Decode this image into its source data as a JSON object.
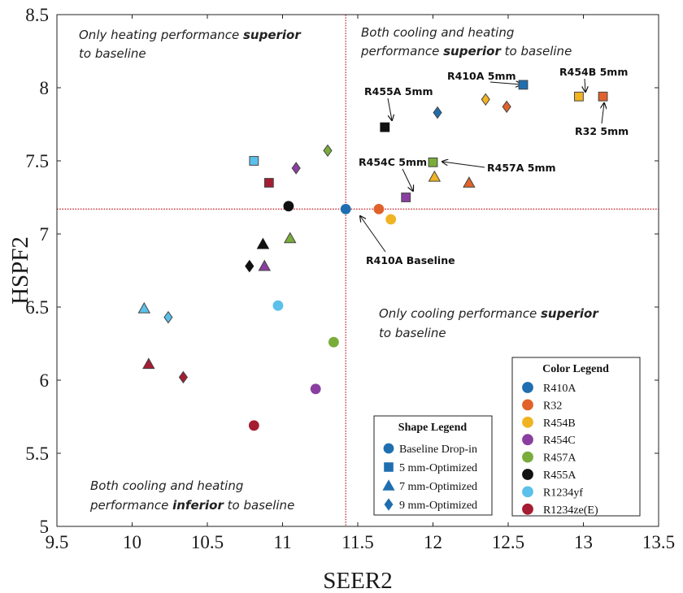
{
  "chart_data": {
    "type": "scatter",
    "xlabel": "SEER2",
    "ylabel": "HSPF2",
    "xlim": [
      9.5,
      13.5
    ],
    "ylim": [
      5,
      8.5
    ],
    "x_ticks": [
      "9.5",
      "10",
      "10.5",
      "11",
      "11.5",
      "12",
      "12.5",
      "13",
      "13.5"
    ],
    "y_ticks": [
      "5",
      "5.5",
      "6",
      "6.5",
      "7",
      "7.5",
      "8",
      "8.5"
    ],
    "grid": false,
    "baseline": {
      "x": 11.42,
      "y": 7.17
    },
    "colors": {
      "R410A": "#1f6fb0",
      "R32": "#e0622a",
      "R454B": "#f0b322",
      "R454C": "#8a3fa0",
      "R457A": "#79ac3a",
      "R455A": "#111111",
      "R1234yf": "#5bc0ea",
      "R1234ze(E)": "#a51d32"
    },
    "quadrant_labels": {
      "top_left": [
        "Only heating performance ",
        "superior",
        " to baseline"
      ],
      "top_right": [
        "Both cooling and heating ",
        "performance ",
        "superior",
        " to baseline"
      ],
      "bottom_right": [
        "Only cooling performance ",
        "superior",
        " to baseline"
      ],
      "bottom_left": [
        "Both cooling and heating ",
        "performance ",
        "inferior",
        " to baseline"
      ]
    },
    "shape_legend": {
      "title": "Shape Legend",
      "entries": [
        {
          "shape": "circle",
          "label": "Baseline Drop-in"
        },
        {
          "shape": "square",
          "label": "5 mm-Optimized"
        },
        {
          "shape": "triangle",
          "label": "7 mm-Optimized"
        },
        {
          "shape": "diamond",
          "label": "9 mm-Optimized"
        }
      ]
    },
    "color_legend": {
      "title": "Color Legend",
      "entries": [
        "R410A",
        "R32",
        "R454B",
        "R454C",
        "R457A",
        "R455A",
        "R1234yf",
        "R1234ze(E)"
      ]
    },
    "points": [
      {
        "refrigerant": "R410A",
        "shape": "circle",
        "x": 11.42,
        "y": 7.17
      },
      {
        "refrigerant": "R410A",
        "shape": "square",
        "x": 12.6,
        "y": 8.02
      },
      {
        "refrigerant": "R410A",
        "shape": "diamond",
        "x": 12.03,
        "y": 7.83
      },
      {
        "refrigerant": "R32",
        "shape": "circle",
        "x": 11.64,
        "y": 7.17
      },
      {
        "refrigerant": "R32",
        "shape": "square",
        "x": 13.13,
        "y": 7.94
      },
      {
        "refrigerant": "R32",
        "shape": "triangle",
        "x": 12.24,
        "y": 7.35
      },
      {
        "refrigerant": "R32",
        "shape": "diamond",
        "x": 12.49,
        "y": 7.87
      },
      {
        "refrigerant": "R454B",
        "shape": "circle",
        "x": 11.72,
        "y": 7.1
      },
      {
        "refrigerant": "R454B",
        "shape": "square",
        "x": 12.97,
        "y": 7.94
      },
      {
        "refrigerant": "R454B",
        "shape": "triangle",
        "x": 12.01,
        "y": 7.39
      },
      {
        "refrigerant": "R454B",
        "shape": "diamond",
        "x": 12.35,
        "y": 7.92
      },
      {
        "refrigerant": "R454C",
        "shape": "circle",
        "x": 11.22,
        "y": 5.94
      },
      {
        "refrigerant": "R454C",
        "shape": "square",
        "x": 11.82,
        "y": 7.25
      },
      {
        "refrigerant": "R454C",
        "shape": "triangle",
        "x": 10.88,
        "y": 6.78
      },
      {
        "refrigerant": "R454C",
        "shape": "diamond",
        "x": 11.09,
        "y": 7.45
      },
      {
        "refrigerant": "R457A",
        "shape": "circle",
        "x": 11.34,
        "y": 6.26
      },
      {
        "refrigerant": "R457A",
        "shape": "square",
        "x": 12.0,
        "y": 7.49
      },
      {
        "refrigerant": "R457A",
        "shape": "triangle",
        "x": 11.05,
        "y": 6.97
      },
      {
        "refrigerant": "R457A",
        "shape": "diamond",
        "x": 11.3,
        "y": 7.57
      },
      {
        "refrigerant": "R455A",
        "shape": "circle",
        "x": 11.04,
        "y": 7.19
      },
      {
        "refrigerant": "R455A",
        "shape": "square",
        "x": 11.68,
        "y": 7.73
      },
      {
        "refrigerant": "R455A",
        "shape": "triangle",
        "x": 10.87,
        "y": 6.93
      },
      {
        "refrigerant": "R455A",
        "shape": "diamond",
        "x": 10.78,
        "y": 6.78
      },
      {
        "refrigerant": "R1234yf",
        "shape": "circle",
        "x": 10.97,
        "y": 6.51
      },
      {
        "refrigerant": "R1234yf",
        "shape": "square",
        "x": 10.81,
        "y": 7.5
      },
      {
        "refrigerant": "R1234yf",
        "shape": "triangle",
        "x": 10.08,
        "y": 6.49
      },
      {
        "refrigerant": "R1234yf",
        "shape": "diamond",
        "x": 10.24,
        "y": 6.43
      },
      {
        "refrigerant": "R1234ze(E)",
        "shape": "circle",
        "x": 10.81,
        "y": 5.69
      },
      {
        "refrigerant": "R1234ze(E)",
        "shape": "square",
        "x": 10.91,
        "y": 7.35
      },
      {
        "refrigerant": "R1234ze(E)",
        "shape": "triangle",
        "x": 10.11,
        "y": 6.11
      },
      {
        "refrigerant": "R1234ze(E)",
        "shape": "diamond",
        "x": 10.34,
        "y": 6.02
      }
    ],
    "annotations": [
      {
        "text": "R410A 5mm",
        "target": [
          12.6,
          8.02
        ]
      },
      {
        "text": "R454B 5mm",
        "target": [
          12.97,
          7.94
        ]
      },
      {
        "text": "R455A 5mm",
        "target": [
          11.68,
          7.73
        ]
      },
      {
        "text": "R32 5mm",
        "target": [
          13.13,
          7.94
        ]
      },
      {
        "text": "R454C 5mm",
        "target": [
          11.82,
          7.25
        ]
      },
      {
        "text": "R457A 5mm",
        "target": [
          12.0,
          7.49
        ]
      },
      {
        "text": "R410A Baseline",
        "target": [
          11.42,
          7.17
        ]
      }
    ]
  }
}
